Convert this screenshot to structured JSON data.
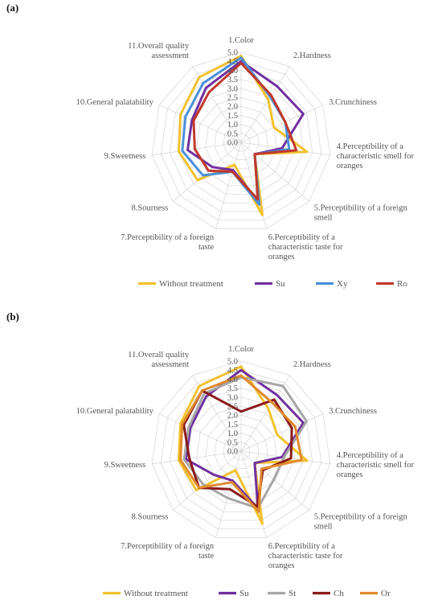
{
  "chart_data": [
    {
      "type": "radar",
      "panel_label": "(a)",
      "axes": [
        [
          "1.Color"
        ],
        [
          "2.Hardness"
        ],
        [
          "3.Crunchiness"
        ],
        [
          "4.Perceptibility of a",
          "characteristic smell for",
          "oranges"
        ],
        [
          "5.Perceptibility of a foreign",
          "smell"
        ],
        [
          "6.Perceptibility of a",
          "characteristic taste for",
          "oranges"
        ],
        [
          "7.Perceptibility of a foreign",
          "taste"
        ],
        [
          "8.Sourness"
        ],
        [
          "9.Sweetness"
        ],
        [
          "10.General palatability"
        ],
        [
          "11.Overall quality",
          "assessment"
        ]
      ],
      "ticks": [
        "0.0",
        "0.5",
        "1.0",
        "1.5",
        "2.0",
        "2.5",
        "3.0",
        "3.5",
        "4.0",
        "4.5",
        "5.0"
      ],
      "rlim": [
        0,
        5
      ],
      "grid": true,
      "legend_position": "bottom",
      "series": [
        {
          "name": "Without treatment",
          "color": "#f2c12e",
          "values": [
            4.8,
            2.8,
            2.0,
            3.7,
            1.0,
            4.2,
            1.3,
            3.2,
            3.5,
            3.7,
            4.3
          ]
        },
        {
          "name": "Su",
          "color": "#7030a0",
          "values": [
            4.5,
            3.7,
            3.8,
            2.3,
            1.0,
            3.4,
            1.6,
            2.1,
            3.0,
            3.0,
            3.6
          ]
        },
        {
          "name": "Xy",
          "color": "#4a90d9",
          "values": [
            4.7,
            3.0,
            2.7,
            2.7,
            1.0,
            3.6,
            1.7,
            2.8,
            3.3,
            3.4,
            3.9
          ]
        },
        {
          "name": "Ro",
          "color": "#c0392b",
          "values": [
            4.4,
            3.1,
            2.7,
            3.1,
            1.0,
            3.3,
            1.7,
            2.4,
            2.6,
            2.9,
            3.3
          ]
        }
      ]
    },
    {
      "type": "radar",
      "panel_label": "(b)",
      "axes": [
        [
          "1.Color"
        ],
        [
          "2.Hardness"
        ],
        [
          "3.Crunchiness"
        ],
        [
          "4.Perceptibility of a",
          "characteristic smell for",
          "oranges"
        ],
        [
          "5.Perceptibility of a foreign",
          "smell"
        ],
        [
          "6.Perceptibility of a",
          "characteristic taste for",
          "oranges"
        ],
        [
          "7.Perceptibility of a foreign",
          "taste"
        ],
        [
          "8.Sourness"
        ],
        [
          "9.Sweetness"
        ],
        [
          "10.General palatability"
        ],
        [
          "11.Overall quality",
          "assessment"
        ]
      ],
      "ticks": [
        "0.0",
        "0.5",
        "1.0",
        "1.5",
        "2.0",
        "2.5",
        "3.0",
        "3.5",
        "4.0",
        "4.5",
        "5.0"
      ],
      "rlim": [
        0,
        5
      ],
      "grid": true,
      "legend_position": "bottom",
      "series": [
        {
          "name": "Without treatment",
          "color": "#f2c12e",
          "values": [
            4.7,
            2.8,
            2.2,
            3.7,
            1.0,
            4.2,
            1.1,
            3.3,
            3.5,
            3.7,
            4.3
          ]
        },
        {
          "name": "Su",
          "color": "#7030a0",
          "values": [
            4.5,
            3.7,
            3.8,
            2.3,
            1.0,
            3.3,
            1.7,
            2.0,
            3.1,
            3.1,
            3.6
          ]
        },
        {
          "name": "St",
          "color": "#a6a6a6",
          "values": [
            4.1,
            4.3,
            4.0,
            2.4,
            2.4,
            3.3,
            2.7,
            2.8,
            3.2,
            3.2,
            3.8
          ]
        },
        {
          "name": "Ch",
          "color": "#8b1a1a",
          "values": [
            2.2,
            3.4,
            3.1,
            2.8,
            1.6,
            3.2,
            2.2,
            3.1,
            2.9,
            3.5,
            4.0
          ]
        },
        {
          "name": "Or",
          "color": "#e08a2c",
          "values": [
            4.2,
            3.2,
            3.3,
            3.4,
            1.5,
            3.5,
            1.8,
            3.1,
            3.4,
            3.6,
            4.0
          ]
        }
      ]
    }
  ]
}
